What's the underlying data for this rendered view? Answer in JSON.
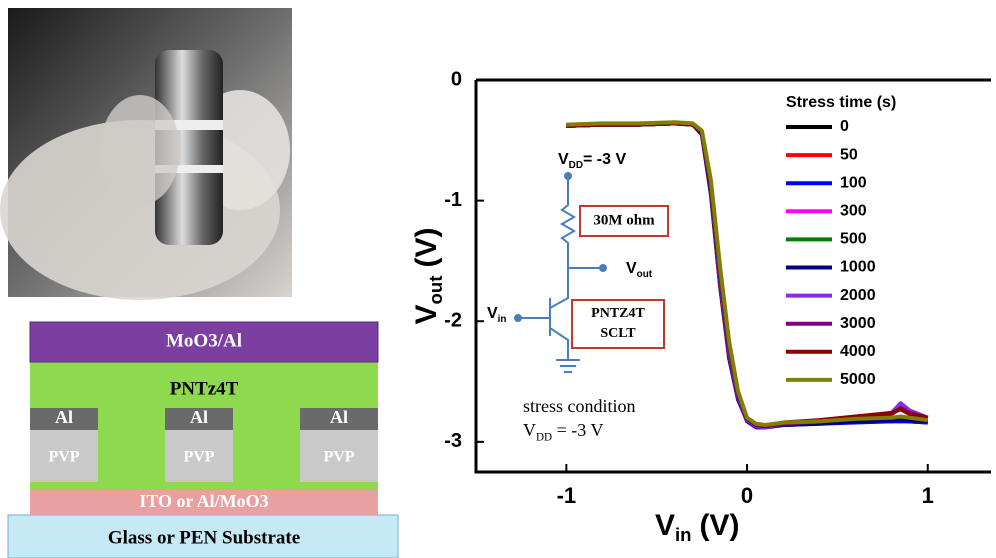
{
  "device": {
    "top_electrode": "MoO3/Al",
    "semiconductor": "PNTz4T",
    "gates": [
      "Al",
      "Al",
      "Al"
    ],
    "dielectrics": [
      "PVP",
      "PVP",
      "PVP"
    ],
    "bottom": "ITO or Al/MoO3",
    "substrate": "Glass or PEN Substrate"
  },
  "chart_data": {
    "type": "line",
    "xlabel": {
      "base": "V",
      "sub": "in",
      "unit": "(V)"
    },
    "ylabel": {
      "base": "V",
      "sub": "out",
      "unit": "(V)"
    },
    "legend_title": "Stress time (s)",
    "xlim": [
      -1.5,
      1.35
    ],
    "ylim": [
      -3.25,
      0
    ],
    "xticks": [
      -1,
      0,
      1
    ],
    "yticks": [
      0,
      -1,
      -2,
      -3
    ],
    "annotations": {
      "vdd": {
        "base": "V",
        "sub": "DD",
        "rest": "= -3 V"
      },
      "resistor": "30M ohm",
      "vout": {
        "base": "V",
        "sub": "out"
      },
      "vin": {
        "base": "V",
        "sub": "in"
      },
      "transistor": [
        "PNTZ4T",
        "SCLT"
      ],
      "condition": "stress condition",
      "condition_vdd": {
        "base": "V",
        "sub": "DD",
        "rest": " = -3 V"
      }
    },
    "x": [
      -1,
      -0.8,
      -0.6,
      -0.4,
      -0.3,
      -0.25,
      -0.2,
      -0.15,
      -0.1,
      -0.05,
      0,
      0.05,
      0.1,
      0.2,
      0.4,
      0.6,
      0.8,
      0.85,
      0.9,
      1
    ],
    "series": [
      {
        "name": "0",
        "color": "#000000",
        "values": [
          -0.38,
          -0.37,
          -0.37,
          -0.36,
          -0.37,
          -0.45,
          -0.95,
          -1.7,
          -2.3,
          -2.65,
          -2.82,
          -2.86,
          -2.87,
          -2.85,
          -2.84,
          -2.83,
          -2.83,
          -2.82,
          -2.83,
          -2.84
        ]
      },
      {
        "name": "50",
        "color": "#ff0000",
        "values": [
          -0.38,
          -0.37,
          -0.37,
          -0.36,
          -0.37,
          -0.45,
          -0.93,
          -1.68,
          -2.28,
          -2.64,
          -2.82,
          -2.86,
          -2.87,
          -2.85,
          -2.84,
          -2.83,
          -2.82,
          -2.82,
          -2.83,
          -2.84
        ]
      },
      {
        "name": "100",
        "color": "#0000ff",
        "values": [
          -0.38,
          -0.37,
          -0.37,
          -0.36,
          -0.37,
          -0.45,
          -0.92,
          -1.66,
          -2.27,
          -2.64,
          -2.83,
          -2.88,
          -2.88,
          -2.86,
          -2.85,
          -2.84,
          -2.83,
          -2.83,
          -2.83,
          -2.84
        ]
      },
      {
        "name": "300",
        "color": "#ff00ff",
        "values": [
          -0.38,
          -0.37,
          -0.37,
          -0.36,
          -0.37,
          -0.44,
          -0.9,
          -1.64,
          -2.25,
          -2.63,
          -2.82,
          -2.86,
          -2.87,
          -2.85,
          -2.84,
          -2.82,
          -2.81,
          -2.8,
          -2.82,
          -2.83
        ]
      },
      {
        "name": "500",
        "color": "#008000",
        "values": [
          -0.38,
          -0.37,
          -0.37,
          -0.36,
          -0.37,
          -0.44,
          -0.9,
          -1.63,
          -2.24,
          -2.62,
          -2.82,
          -2.86,
          -2.87,
          -2.85,
          -2.84,
          -2.82,
          -2.81,
          -2.8,
          -2.82,
          -2.83
        ]
      },
      {
        "name": "1000",
        "color": "#000080",
        "values": [
          -0.38,
          -0.37,
          -0.37,
          -0.36,
          -0.37,
          -0.44,
          -0.89,
          -1.62,
          -2.23,
          -2.62,
          -2.82,
          -2.87,
          -2.88,
          -2.86,
          -2.85,
          -2.83,
          -2.82,
          -2.81,
          -2.82,
          -2.83
        ]
      },
      {
        "name": "2000",
        "color": "#8a2be2",
        "values": [
          -0.38,
          -0.37,
          -0.37,
          -0.36,
          -0.37,
          -0.43,
          -0.87,
          -1.6,
          -2.22,
          -2.61,
          -2.82,
          -2.87,
          -2.88,
          -2.85,
          -2.83,
          -2.8,
          -2.76,
          -2.68,
          -2.74,
          -2.8
        ]
      },
      {
        "name": "3000",
        "color": "#800080",
        "values": [
          -0.38,
          -0.37,
          -0.37,
          -0.36,
          -0.37,
          -0.43,
          -0.86,
          -1.58,
          -2.2,
          -2.6,
          -2.81,
          -2.86,
          -2.87,
          -2.85,
          -2.83,
          -2.8,
          -2.77,
          -2.72,
          -2.76,
          -2.8
        ]
      },
      {
        "name": "4000",
        "color": "#8b0000",
        "values": [
          -0.38,
          -0.37,
          -0.37,
          -0.36,
          -0.37,
          -0.43,
          -0.85,
          -1.56,
          -2.18,
          -2.59,
          -2.81,
          -2.86,
          -2.87,
          -2.84,
          -2.82,
          -2.79,
          -2.76,
          -2.73,
          -2.77,
          -2.8
        ]
      },
      {
        "name": "5000",
        "color": "#808000",
        "values": [
          -0.37,
          -0.36,
          -0.36,
          -0.35,
          -0.36,
          -0.42,
          -0.83,
          -1.54,
          -2.16,
          -2.58,
          -2.8,
          -2.85,
          -2.86,
          -2.84,
          -2.83,
          -2.81,
          -2.8,
          -2.79,
          -2.8,
          -2.82
        ]
      }
    ]
  }
}
